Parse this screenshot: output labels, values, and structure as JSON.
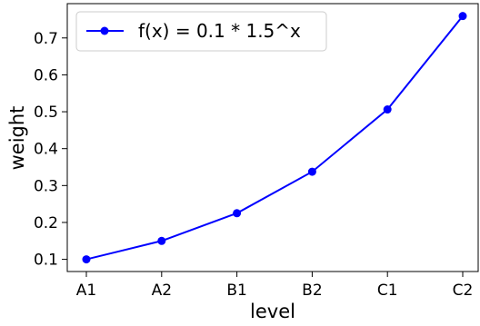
{
  "chart_data": {
    "type": "line",
    "categories": [
      "A1",
      "A2",
      "B1",
      "B2",
      "C1",
      "C2"
    ],
    "series": [
      {
        "name": "f(x) = 0.1 * 1.5^x",
        "values": [
          0.1,
          0.15,
          0.225,
          0.3375,
          0.50625,
          0.759375
        ],
        "color": "#0000ff",
        "marker": "circle"
      }
    ],
    "xlabel": "level",
    "ylabel": "weight",
    "ylim": [
      0.067,
      0.793
    ],
    "yticks": [
      0.1,
      0.2,
      0.3,
      0.4,
      0.5,
      0.6,
      0.7
    ],
    "ytick_labels": [
      "0.1",
      "0.2",
      "0.3",
      "0.4",
      "0.5",
      "0.6",
      "0.7"
    ],
    "grid": false,
    "legend_position": "top-left"
  }
}
